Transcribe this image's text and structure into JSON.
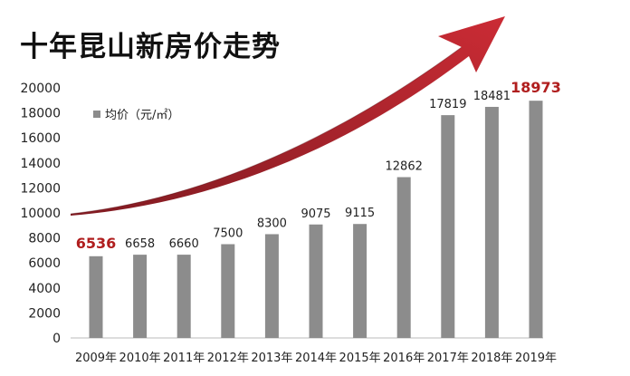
{
  "title": "十年昆山新房价走势",
  "chart_data": {
    "type": "bar",
    "title": "十年昆山新房价走势",
    "xlabel": "",
    "ylabel": "",
    "categories": [
      "2009年",
      "2010年",
      "2011年",
      "2012年",
      "2013年",
      "2014年",
      "2015年",
      "2016年",
      "2017年",
      "2018年",
      "2019年"
    ],
    "series": [
      {
        "name": "均价（元/㎡）",
        "values": [
          6536,
          6658,
          6660,
          7500,
          8300,
          9075,
          9115,
          12862,
          17819,
          18481,
          18973
        ]
      }
    ],
    "data_labels": [
      "6536",
      "6658",
      "6660",
      "7500",
      "8300",
      "9075",
      "9115",
      "12862",
      "17819",
      "18481",
      "18973"
    ],
    "highlighted_indices": [
      0,
      10
    ],
    "ylim": [
      0,
      20000
    ],
    "yticks": [
      0,
      2000,
      4000,
      6000,
      8000,
      10000,
      12000,
      14000,
      16000,
      18000,
      20000
    ],
    "grid": false,
    "legend_position": "top-left",
    "bar_color": "#8c8c8c",
    "highlight_color": "#b01e1e",
    "trend_arrow": {
      "color_dark": "#7a0f16",
      "color_light": "#c8202a",
      "direction": "upward"
    }
  }
}
